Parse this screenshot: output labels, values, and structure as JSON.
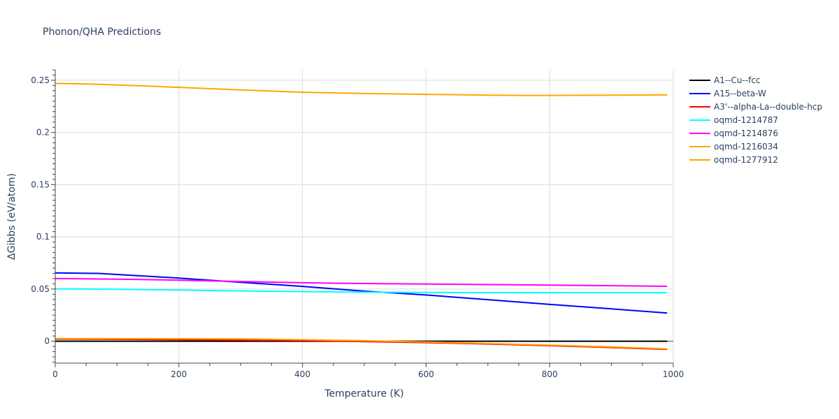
{
  "chart_data": {
    "type": "line",
    "title": "Phonon/QHA Predictions",
    "xlabel": "Temperature (K)",
    "ylabel": "ΔGibbs (eV/atom)",
    "xlim": [
      0,
      1000
    ],
    "ylim": [
      -0.021,
      0.26
    ],
    "x_ticks": [
      0,
      200,
      400,
      600,
      800,
      1000
    ],
    "x_tick_labels": [
      "0",
      "200",
      "400",
      "600",
      "800",
      "1000"
    ],
    "y_ticks": [
      0,
      0.05,
      0.1,
      0.15,
      0.2,
      0.25
    ],
    "y_tick_labels": [
      "0",
      "0.05",
      "0.1",
      "0.15",
      "0.2",
      "0.25"
    ],
    "grid": true,
    "legend_position": "right",
    "series": [
      {
        "name": "A1--Cu--fcc",
        "color": "#000000",
        "x": [
          0,
          100,
          200,
          300,
          400,
          500,
          600,
          700,
          800,
          900,
          990
        ],
        "y": [
          0,
          0,
          0,
          0,
          0,
          0,
          0,
          0,
          0,
          0,
          0
        ]
      },
      {
        "name": "A15--beta-W",
        "color": "#0000ff",
        "x": [
          0,
          70,
          200,
          300,
          400,
          500,
          600,
          700,
          800,
          900,
          990
        ],
        "y": [
          0.0655,
          0.065,
          0.0605,
          0.0565,
          0.0525,
          0.048,
          0.0443,
          0.0398,
          0.0353,
          0.031,
          0.027
        ]
      },
      {
        "name": "A3'--alpha-La--double-hcp",
        "color": "#ff0000",
        "x": [
          0,
          100,
          200,
          300,
          400,
          500,
          600,
          700,
          800,
          900,
          990
        ],
        "y": [
          0.002,
          0.0018,
          0.0015,
          0.001,
          0.0005,
          -0.0003,
          -0.0013,
          -0.0027,
          -0.0043,
          -0.006,
          -0.0078
        ]
      },
      {
        "name": "oqmd-1214787",
        "color": "#00ffff",
        "x": [
          0,
          100,
          200,
          300,
          400,
          500,
          600,
          700,
          800,
          900,
          990
        ],
        "y": [
          0.0502,
          0.0498,
          0.049,
          0.0482,
          0.0475,
          0.047,
          0.0467,
          0.0465,
          0.0465,
          0.0464,
          0.0464
        ]
      },
      {
        "name": "oqmd-1214876",
        "color": "#ff00ff",
        "x": [
          0,
          100,
          200,
          300,
          400,
          500,
          600,
          700,
          800,
          900,
          990
        ],
        "y": [
          0.06,
          0.0595,
          0.0585,
          0.0572,
          0.056,
          0.0553,
          0.0548,
          0.0543,
          0.0538,
          0.0532,
          0.0526
        ]
      },
      {
        "name": "oqmd-1216034",
        "color": "#ffa500",
        "x": [
          0,
          100,
          200,
          300,
          400,
          500,
          600,
          700,
          800,
          900,
          990
        ],
        "y": [
          0.0025,
          0.0025,
          0.0024,
          0.0022,
          0.0015,
          0.0005,
          -0.0008,
          -0.0022,
          -0.0038,
          -0.0055,
          -0.0073
        ]
      },
      {
        "name": "oqmd-1277912",
        "color": "#ffa500",
        "x": [
          0,
          65,
          150,
          200,
          300,
          400,
          500,
          600,
          700,
          755,
          800,
          900,
          990
        ],
        "y": [
          0.247,
          0.2462,
          0.2445,
          0.2432,
          0.2408,
          0.2385,
          0.2373,
          0.2365,
          0.2358,
          0.2355,
          0.2355,
          0.2357,
          0.236
        ]
      }
    ]
  }
}
